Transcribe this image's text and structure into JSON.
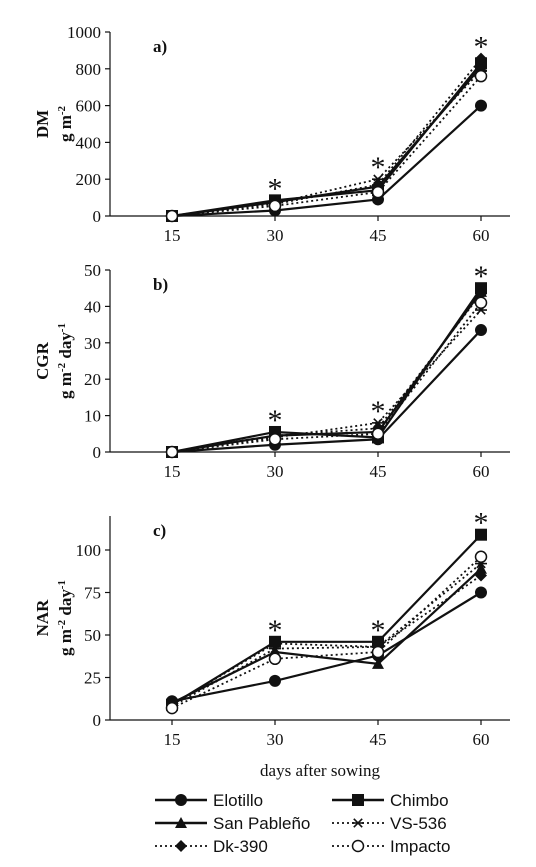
{
  "chart_data": [
    {
      "type": "line",
      "panel": "a)",
      "ylabel": "DM",
      "yunit": [
        "g m",
        "-2",
        ""
      ],
      "x": [
        15,
        30,
        45,
        60
      ],
      "ylim": [
        0,
        1000
      ],
      "yticks": [
        0,
        200,
        400,
        600,
        800,
        1000
      ],
      "significance": [
        "",
        "*",
        "*",
        "*"
      ],
      "series": [
        {
          "name": "Elotillo",
          "values": [
            0,
            30,
            90,
            600
          ]
        },
        {
          "name": "Chimbo",
          "values": [
            0,
            85,
            140,
            830
          ]
        },
        {
          "name": "San Pableño",
          "values": [
            0,
            75,
            160,
            810
          ]
        },
        {
          "name": "VS-536",
          "values": [
            0,
            70,
            200,
            790
          ]
        },
        {
          "name": "Dk-390",
          "values": [
            0,
            65,
            170,
            855
          ]
        },
        {
          "name": "Impacto",
          "values": [
            0,
            55,
            130,
            760
          ]
        }
      ]
    },
    {
      "type": "line",
      "panel": "b)",
      "ylabel": "CGR",
      "yunit": [
        "g m",
        "-2",
        " day",
        "-1"
      ],
      "x": [
        15,
        30,
        45,
        60
      ],
      "ylim": [
        0,
        50
      ],
      "yticks": [
        0,
        10,
        20,
        30,
        40,
        50
      ],
      "significance": [
        "",
        "*",
        "*",
        "*"
      ],
      "series": [
        {
          "name": "Elotillo",
          "values": [
            0,
            2.0,
            3.5,
            33.5
          ]
        },
        {
          "name": "Chimbo",
          "values": [
            0,
            5.5,
            4.0,
            45.0
          ]
        },
        {
          "name": "San Pableño",
          "values": [
            0,
            4.5,
            5.5,
            44.0
          ]
        },
        {
          "name": "VS-536",
          "values": [
            0,
            4.0,
            8.0,
            39.0
          ]
        },
        {
          "name": "Dk-390",
          "values": [
            0,
            4.5,
            6.5,
            43.5
          ]
        },
        {
          "name": "Impacto",
          "values": [
            0,
            3.5,
            5.0,
            41.0
          ]
        }
      ]
    },
    {
      "type": "line",
      "panel": "c)",
      "ylabel": "NAR",
      "yunit": [
        "g m",
        "-2",
        " day",
        "-1"
      ],
      "x": [
        15,
        30,
        45,
        60
      ],
      "ylim": [
        0,
        120
      ],
      "yticks": [
        0,
        25,
        50,
        75,
        100
      ],
      "significance": [
        "",
        "*",
        "*",
        "*"
      ],
      "series": [
        {
          "name": "Elotillo",
          "values": [
            11,
            23,
            38,
            75
          ]
        },
        {
          "name": "Chimbo",
          "values": [
            9,
            46,
            46,
            109
          ]
        },
        {
          "name": "San Pableño",
          "values": [
            10,
            40,
            33,
            89
          ]
        },
        {
          "name": "VS-536",
          "values": [
            8,
            42,
            43,
            92
          ]
        },
        {
          "name": "Dk-390",
          "values": [
            9,
            45,
            43,
            85
          ]
        },
        {
          "name": "Impacto",
          "values": [
            7,
            36,
            40,
            96
          ]
        }
      ]
    }
  ],
  "xlabel": "days after sowing",
  "styles": {
    "Elotillo": {
      "dash": "",
      "marker": "circle-filled"
    },
    "Chimbo": {
      "dash": "",
      "marker": "square-filled"
    },
    "San Pableño": {
      "dash": "",
      "marker": "triangle-filled"
    },
    "VS-536": {
      "dash": "dotted",
      "marker": "asterisk"
    },
    "Dk-390": {
      "dash": "dotted",
      "marker": "diamond-filled"
    },
    "Impacto": {
      "dash": "dotted",
      "marker": "circle-open"
    }
  },
  "legend": {
    "placement": "bottom",
    "items": [
      "Elotillo",
      "Chimbo",
      "San Pableño",
      "VS-536",
      "Dk-390",
      "Impacto"
    ]
  },
  "colors": {
    "ink": "#111111"
  }
}
